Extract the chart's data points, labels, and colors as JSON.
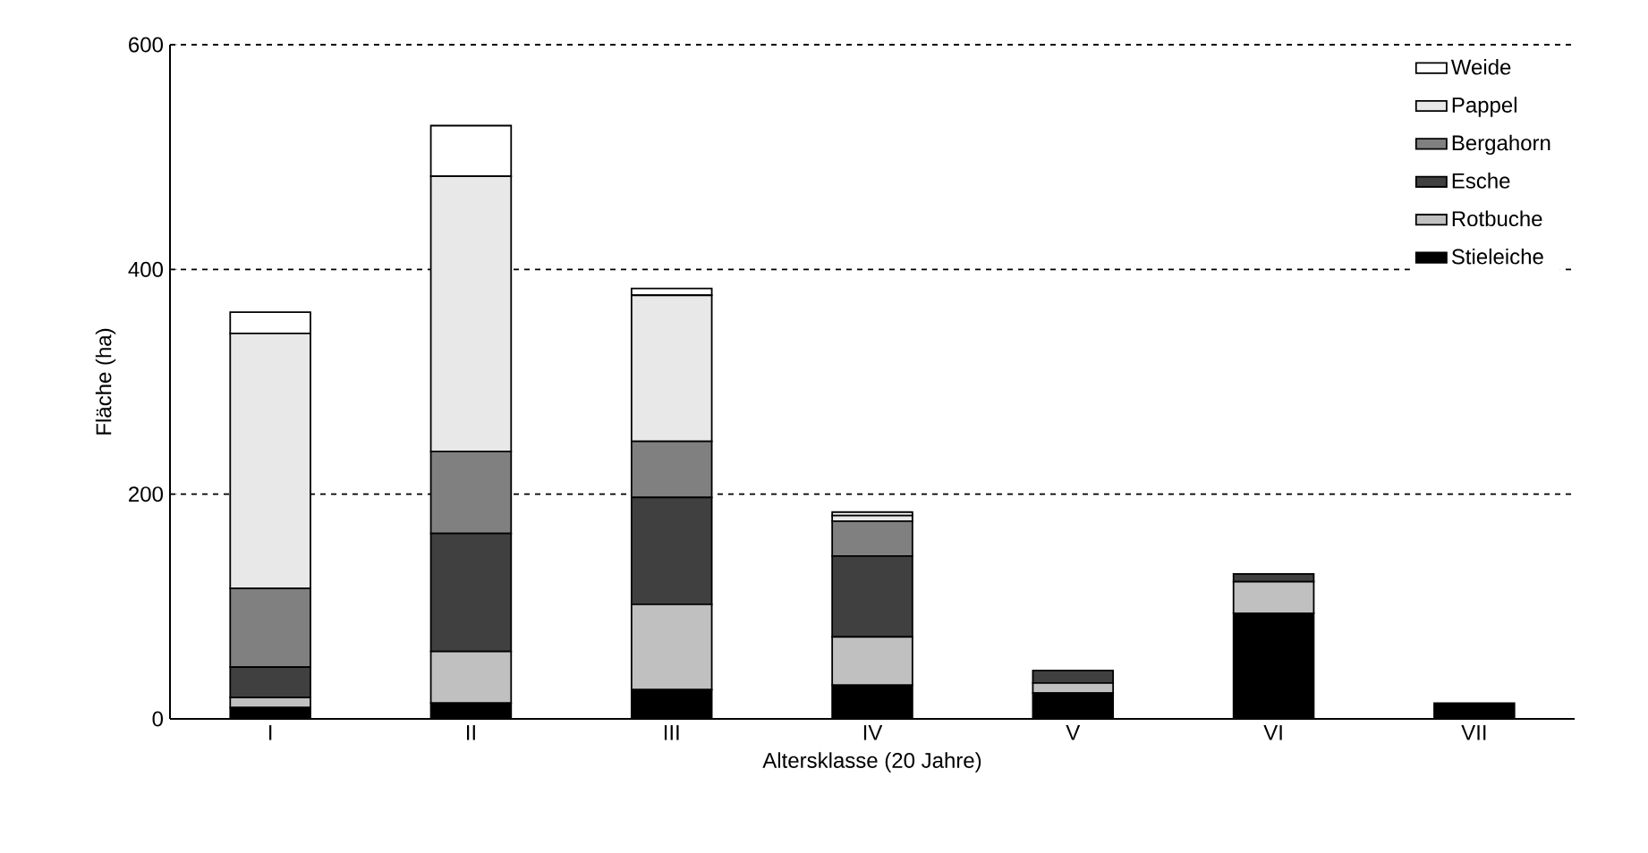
{
  "chart_data": {
    "type": "bar",
    "stacked": true,
    "xlabel": "Altersklasse (20 Jahre)",
    "ylabel": "Fläche (ha)",
    "categories": [
      "I",
      "II",
      "III",
      "IV",
      "V",
      "VI",
      "VII"
    ],
    "series": [
      {
        "name": "Stieleiche",
        "color": "#000000",
        "values": [
          10,
          14,
          26,
          30,
          23,
          94,
          14
        ]
      },
      {
        "name": "Rotbuche",
        "color": "#c0c0c0",
        "values": [
          9,
          46,
          76,
          43,
          9,
          28,
          0
        ]
      },
      {
        "name": "Esche",
        "color": "#404040",
        "values": [
          27,
          105,
          95,
          72,
          11,
          7,
          0
        ]
      },
      {
        "name": "Bergahorn",
        "color": "#808080",
        "values": [
          70,
          73,
          50,
          31,
          0,
          0,
          0
        ]
      },
      {
        "name": "Pappel",
        "color": "#e8e8e8",
        "values": [
          227,
          245,
          130,
          5,
          0,
          0,
          0
        ]
      },
      {
        "name": "Weide",
        "color": "#ffffff",
        "values": [
          19,
          45,
          6,
          3,
          0,
          0,
          0
        ]
      }
    ],
    "ylim": [
      0,
      600
    ],
    "yticks": [
      0,
      200,
      400,
      600
    ],
    "grid": "y",
    "legend": "top right"
  }
}
